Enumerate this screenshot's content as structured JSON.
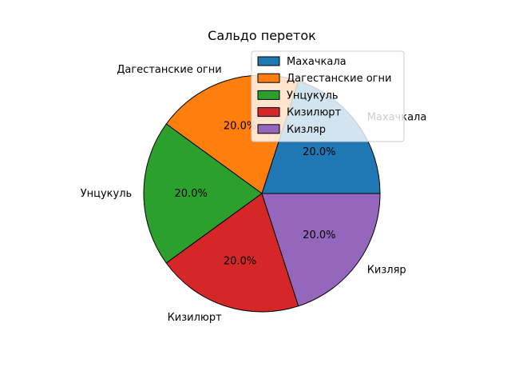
{
  "chart_data": {
    "type": "pie",
    "title": "Сальдо переток",
    "categories": [
      "Махачкала",
      "Дагестанские огни",
      "Унцукуль",
      "Кизилюрт",
      "Кизляр"
    ],
    "values": [
      20,
      20,
      20,
      20,
      20
    ],
    "value_labels": [
      "20.0%",
      "20.0%",
      "20.0%",
      "20.0%",
      "20.0%"
    ],
    "colors": [
      "#1f77b4",
      "#ff7f0e",
      "#2ca02c",
      "#d62728",
      "#9467bd"
    ],
    "start_angle_deg": 0,
    "direction": "counterclockwise",
    "legend": {
      "placement": "top-right",
      "entries": [
        "Махачкала",
        "Дагестанские огни",
        "Унцукуль",
        "Кизилюрт",
        "Кизляр"
      ]
    }
  }
}
